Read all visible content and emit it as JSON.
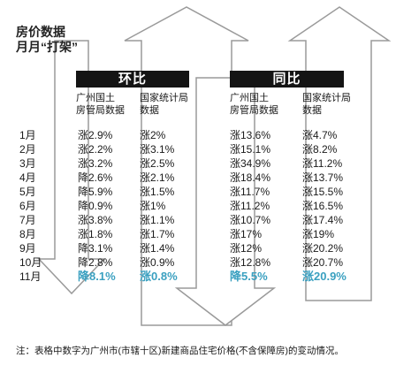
{
  "title_lines": [
    "房价数据",
    "月月“打架”"
  ],
  "sections": [
    {
      "label": "环比",
      "sources": [
        [
          "广州国土",
          "房管局数据"
        ],
        [
          "国家统计局",
          "数据"
        ]
      ]
    },
    {
      "label": "同比",
      "sources": [
        [
          "广州国土",
          "房管局数据"
        ],
        [
          "国家统计局",
          "数据"
        ]
      ]
    }
  ],
  "months": [
    "1月",
    "2月",
    "3月",
    "4月",
    "5月",
    "6月",
    "7月",
    "8月",
    "9月",
    "10月",
    "11月"
  ],
  "columns": [
    [
      "涨2.9%",
      "涨2.2%",
      "涨3.2%",
      "降2.6%",
      "降5.9%",
      "降0.9%",
      "涨3.8%",
      "涨1.8%",
      "降3.1%",
      "降2.8%",
      "降8.1%"
    ],
    [
      "涨2%",
      "涨3.1%",
      "涨2.5%",
      "涨2.1%",
      "涨1.5%",
      "涨1%",
      "涨1.1%",
      "涨1.7%",
      "涨1.4%",
      "涨0.9%",
      "涨0.8%"
    ],
    [
      "涨13.6%",
      "涨15.1%",
      "涨34.9%",
      "涨18.4%",
      "涨11.7%",
      "涨11.2%",
      "涨10.7%",
      "涨17%",
      "涨12%",
      "涨12.8%",
      "降5.5%"
    ],
    [
      "涨4.7%",
      "涨8.2%",
      "涨11.2%",
      "涨13.7%",
      "涨15.5%",
      "涨16.5%",
      "涨17.4%",
      "涨19%",
      "涨20.2%",
      "涨20.7%",
      "涨20.9%"
    ]
  ],
  "highlight_color": "#3aa0c0",
  "footnote": "注：表格中数字为广州市(市辖十区)新建商品住宅价格(不含保障房)的变动情况。"
}
